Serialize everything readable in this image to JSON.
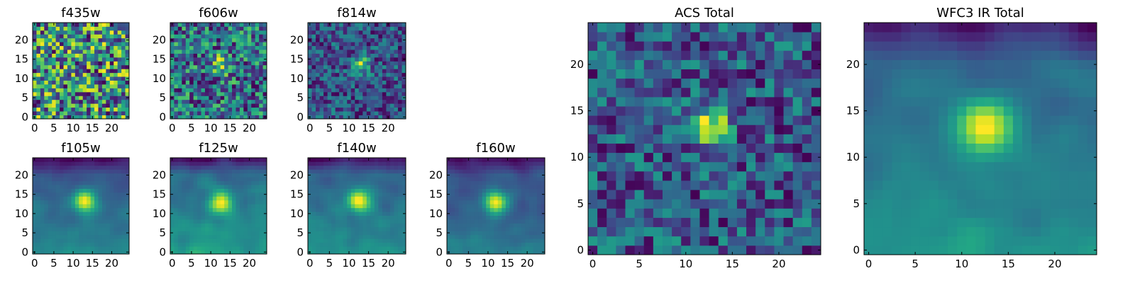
{
  "figure": {
    "colormap": "viridis"
  },
  "chart_data": [
    {
      "type": "heatmap",
      "title": "f435w",
      "grid": false,
      "xlim": [
        0,
        24
      ],
      "ylim": [
        0,
        24
      ],
      "xticks": [
        0,
        5,
        10,
        15,
        20
      ],
      "yticks": [
        0,
        5,
        10,
        15,
        20
      ],
      "texture": "noise",
      "source": null
    },
    {
      "type": "heatmap",
      "title": "f606w",
      "grid": false,
      "xlim": [
        0,
        24
      ],
      "ylim": [
        0,
        24
      ],
      "xticks": [
        0,
        5,
        10,
        15,
        20
      ],
      "yticks": [
        0,
        5,
        10,
        15,
        20
      ],
      "texture": "noisy-source",
      "source": {
        "x": 12.5,
        "y": 13.5,
        "strength": 0.35
      }
    },
    {
      "type": "heatmap",
      "title": "f814w",
      "grid": false,
      "xlim": [
        0,
        24
      ],
      "ylim": [
        0,
        24
      ],
      "xticks": [
        0,
        5,
        10,
        15,
        20
      ],
      "yticks": [
        0,
        5,
        10,
        15,
        20
      ],
      "texture": "noisy-source",
      "source": {
        "x": 13,
        "y": 13.5,
        "strength": 0.55
      }
    },
    {
      "type": "heatmap",
      "title": "f105w",
      "grid": false,
      "xlim": [
        0,
        24
      ],
      "ylim": [
        0,
        24
      ],
      "xticks": [
        0,
        5,
        10,
        15,
        20
      ],
      "yticks": [
        0,
        5,
        10,
        15,
        20
      ],
      "texture": "smooth-source",
      "source": {
        "x": 13,
        "y": 13.5,
        "strength": 0.75
      }
    },
    {
      "type": "heatmap",
      "title": "f125w",
      "grid": false,
      "xlim": [
        0,
        24
      ],
      "ylim": [
        0,
        24
      ],
      "xticks": [
        0,
        5,
        10,
        15,
        20
      ],
      "yticks": [
        0,
        5,
        10,
        15,
        20
      ],
      "texture": "smooth-source",
      "source": {
        "x": 12.5,
        "y": 13,
        "strength": 0.6
      }
    },
    {
      "type": "heatmap",
      "title": "f140w",
      "grid": false,
      "xlim": [
        0,
        24
      ],
      "ylim": [
        0,
        24
      ],
      "xticks": [
        0,
        5,
        10,
        15,
        20
      ],
      "yticks": [
        0,
        5,
        10,
        15,
        20
      ],
      "texture": "smooth-source",
      "source": {
        "x": 12.5,
        "y": 13.5,
        "strength": 0.7
      }
    },
    {
      "type": "heatmap",
      "title": "f160w",
      "grid": false,
      "xlim": [
        0,
        24
      ],
      "ylim": [
        0,
        24
      ],
      "xticks": [
        0,
        5,
        10,
        15,
        20
      ],
      "yticks": [
        0,
        5,
        10,
        15,
        20
      ],
      "texture": "smooth-source",
      "source": {
        "x": 12,
        "y": 13,
        "strength": 0.8
      }
    },
    {
      "type": "heatmap",
      "title": "ACS Total",
      "grid": false,
      "xlim": [
        0,
        24
      ],
      "ylim": [
        0,
        24
      ],
      "xticks": [
        0,
        5,
        10,
        15,
        20
      ],
      "yticks": [
        0,
        5,
        10,
        15,
        20
      ],
      "texture": "noisy-source",
      "source": {
        "x": 12.5,
        "y": 13.5,
        "strength": 0.6
      }
    },
    {
      "type": "heatmap",
      "title": "WFC3 IR Total",
      "grid": false,
      "xlim": [
        0,
        24
      ],
      "ylim": [
        0,
        24
      ],
      "xticks": [
        0,
        5,
        10,
        15,
        20
      ],
      "yticks": [
        0,
        5,
        10,
        15,
        20
      ],
      "texture": "smooth-source",
      "source": {
        "x": 12.5,
        "y": 13.5,
        "strength": 0.85
      }
    }
  ]
}
